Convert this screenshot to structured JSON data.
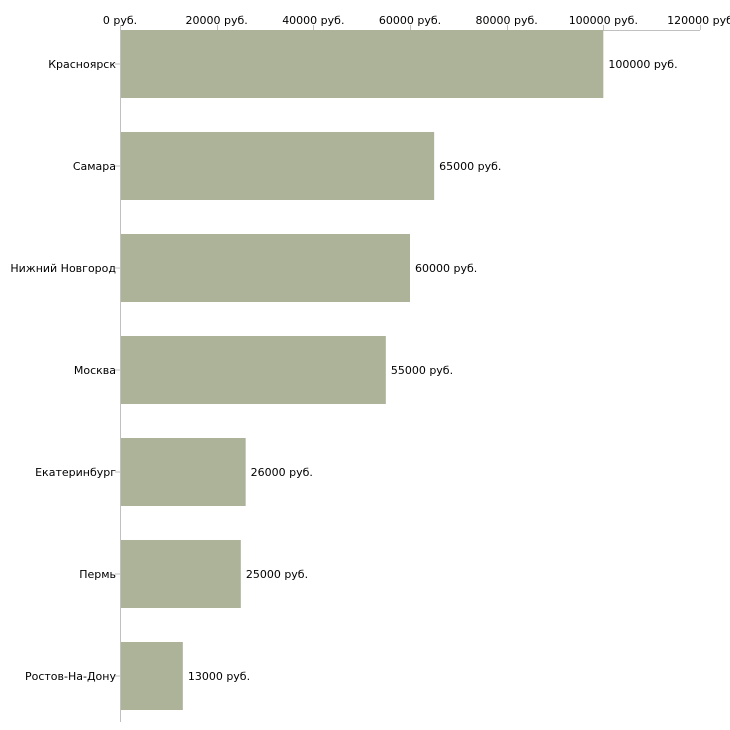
{
  "chart_data": {
    "type": "bar",
    "orientation": "horizontal",
    "categories": [
      "Красноярск",
      "Самара",
      "Нижний Новгород",
      "Москва",
      "Екатеринбург",
      "Пермь",
      "Ростов-На-Дону"
    ],
    "values": [
      100000,
      65000,
      60000,
      55000,
      26000,
      25000,
      13000
    ],
    "value_labels": [
      "100000 руб.",
      "65000 руб.",
      "60000 руб.",
      "55000 руб.",
      "26000 руб.",
      "25000 руб.",
      "13000 руб."
    ],
    "ticks": [
      0,
      20000,
      40000,
      60000,
      80000,
      100000,
      120000
    ],
    "tick_labels": [
      "0 руб.",
      "20000 руб.",
      "40000 руб.",
      "60000 руб.",
      "80000 руб.",
      "100000 руб.",
      "120000 руб"
    ],
    "xlim": [
      0,
      120000
    ],
    "axis_position": "top",
    "title": "",
    "xlabel": "",
    "ylabel": "",
    "grid": false,
    "colors": {
      "bar": "#adb399",
      "axis": "#c0c0c0",
      "text": "#000000"
    }
  }
}
